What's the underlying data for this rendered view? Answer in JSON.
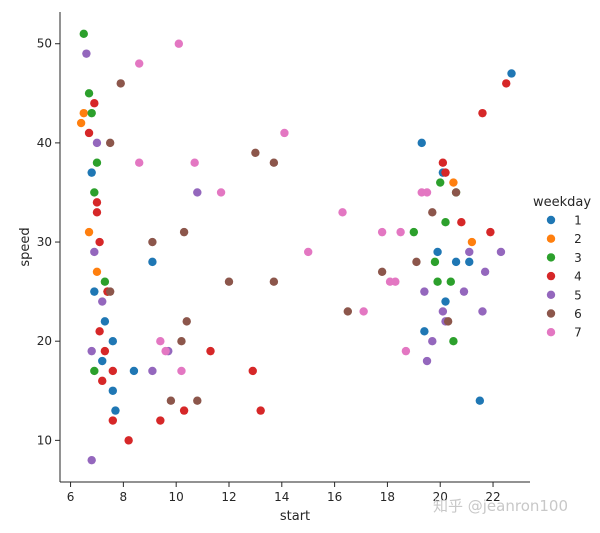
{
  "chart_data": {
    "type": "scatter",
    "xlabel": "start",
    "ylabel": "speed",
    "xlim": [
      5.6,
      23.4
    ],
    "ylim": [
      5.8,
      53.2
    ],
    "xticks": [
      6,
      8,
      10,
      12,
      14,
      16,
      18,
      20,
      22
    ],
    "yticks": [
      10,
      20,
      30,
      40,
      50
    ],
    "grid": false,
    "legend": {
      "title": "weekday",
      "position": "right"
    },
    "watermark": "知乎 @jeanron100",
    "series": [
      {
        "name": "1",
        "color": "#1f77b4",
        "points": [
          [
            6.8,
            37
          ],
          [
            6.9,
            25
          ],
          [
            7.2,
            18
          ],
          [
            7.3,
            22
          ],
          [
            7.6,
            20
          ],
          [
            7.6,
            15
          ],
          [
            7.7,
            13
          ],
          [
            8.4,
            17
          ],
          [
            9.1,
            28
          ],
          [
            19.3,
            40
          ],
          [
            19.4,
            21
          ],
          [
            19.9,
            29
          ],
          [
            20.1,
            37
          ],
          [
            20.2,
            24
          ],
          [
            20.6,
            28
          ],
          [
            21.1,
            28
          ],
          [
            21.5,
            14
          ],
          [
            22.7,
            47
          ]
        ]
      },
      {
        "name": "2",
        "color": "#ff7f0e",
        "points": [
          [
            6.4,
            42
          ],
          [
            6.5,
            43
          ],
          [
            6.7,
            31
          ],
          [
            7.0,
            27
          ],
          [
            20.5,
            36
          ],
          [
            21.2,
            30
          ]
        ]
      },
      {
        "name": "3",
        "color": "#2ca02c",
        "points": [
          [
            6.5,
            51
          ],
          [
            6.7,
            45
          ],
          [
            6.8,
            43
          ],
          [
            6.9,
            35
          ],
          [
            7.0,
            38
          ],
          [
            7.3,
            26
          ],
          [
            7.4,
            25
          ],
          [
            6.9,
            17
          ],
          [
            19.0,
            31
          ],
          [
            19.8,
            28
          ],
          [
            19.9,
            26
          ],
          [
            20.0,
            36
          ],
          [
            20.2,
            32
          ],
          [
            20.4,
            26
          ],
          [
            20.5,
            20
          ],
          [
            20.6,
            35
          ]
        ]
      },
      {
        "name": "4",
        "color": "#d62728",
        "points": [
          [
            6.7,
            41
          ],
          [
            6.9,
            44
          ],
          [
            7.0,
            34
          ],
          [
            7.0,
            33
          ],
          [
            7.1,
            30
          ],
          [
            7.1,
            21
          ],
          [
            7.2,
            16
          ],
          [
            7.3,
            19
          ],
          [
            7.4,
            25
          ],
          [
            7.6,
            17
          ],
          [
            7.6,
            12
          ],
          [
            8.2,
            10
          ],
          [
            9.4,
            12
          ],
          [
            10.3,
            13
          ],
          [
            11.3,
            19
          ],
          [
            12.9,
            17
          ],
          [
            13.2,
            13
          ],
          [
            20.1,
            38
          ],
          [
            20.2,
            37
          ],
          [
            20.8,
            32
          ],
          [
            21.6,
            43
          ],
          [
            21.9,
            31
          ],
          [
            22.5,
            46
          ]
        ]
      },
      {
        "name": "5",
        "color": "#9467bd",
        "points": [
          [
            6.6,
            49
          ],
          [
            6.8,
            19
          ],
          [
            6.8,
            8
          ],
          [
            6.9,
            29
          ],
          [
            7.0,
            40
          ],
          [
            7.2,
            24
          ],
          [
            9.1,
            17
          ],
          [
            9.7,
            19
          ],
          [
            10.8,
            35
          ],
          [
            19.4,
            25
          ],
          [
            19.5,
            18
          ],
          [
            19.7,
            20
          ],
          [
            20.1,
            23
          ],
          [
            20.2,
            22
          ],
          [
            20.9,
            25
          ],
          [
            21.1,
            29
          ],
          [
            21.6,
            23
          ],
          [
            21.7,
            27
          ],
          [
            22.3,
            29
          ]
        ]
      },
      {
        "name": "6",
        "color": "#8c564b",
        "points": [
          [
            7.5,
            40
          ],
          [
            7.5,
            25
          ],
          [
            7.9,
            46
          ],
          [
            9.1,
            30
          ],
          [
            9.8,
            14
          ],
          [
            10.2,
            20
          ],
          [
            10.3,
            31
          ],
          [
            10.4,
            22
          ],
          [
            10.8,
            14
          ],
          [
            12.0,
            26
          ],
          [
            13.0,
            39
          ],
          [
            13.7,
            26
          ],
          [
            13.7,
            38
          ],
          [
            16.5,
            23
          ],
          [
            17.8,
            27
          ],
          [
            19.1,
            28
          ],
          [
            19.7,
            33
          ],
          [
            20.3,
            22
          ],
          [
            20.6,
            35
          ]
        ]
      },
      {
        "name": "7",
        "color": "#e377c2",
        "points": [
          [
            8.6,
            48
          ],
          [
            8.6,
            38
          ],
          [
            9.4,
            20
          ],
          [
            9.6,
            19
          ],
          [
            10.1,
            50
          ],
          [
            10.2,
            17
          ],
          [
            10.7,
            38
          ],
          [
            11.7,
            35
          ],
          [
            14.1,
            41
          ],
          [
            15.0,
            29
          ],
          [
            16.3,
            33
          ],
          [
            17.1,
            23
          ],
          [
            17.8,
            31
          ],
          [
            18.1,
            26
          ],
          [
            18.3,
            26
          ],
          [
            18.5,
            31
          ],
          [
            18.7,
            19
          ],
          [
            19.3,
            35
          ],
          [
            19.5,
            35
          ]
        ]
      }
    ]
  }
}
